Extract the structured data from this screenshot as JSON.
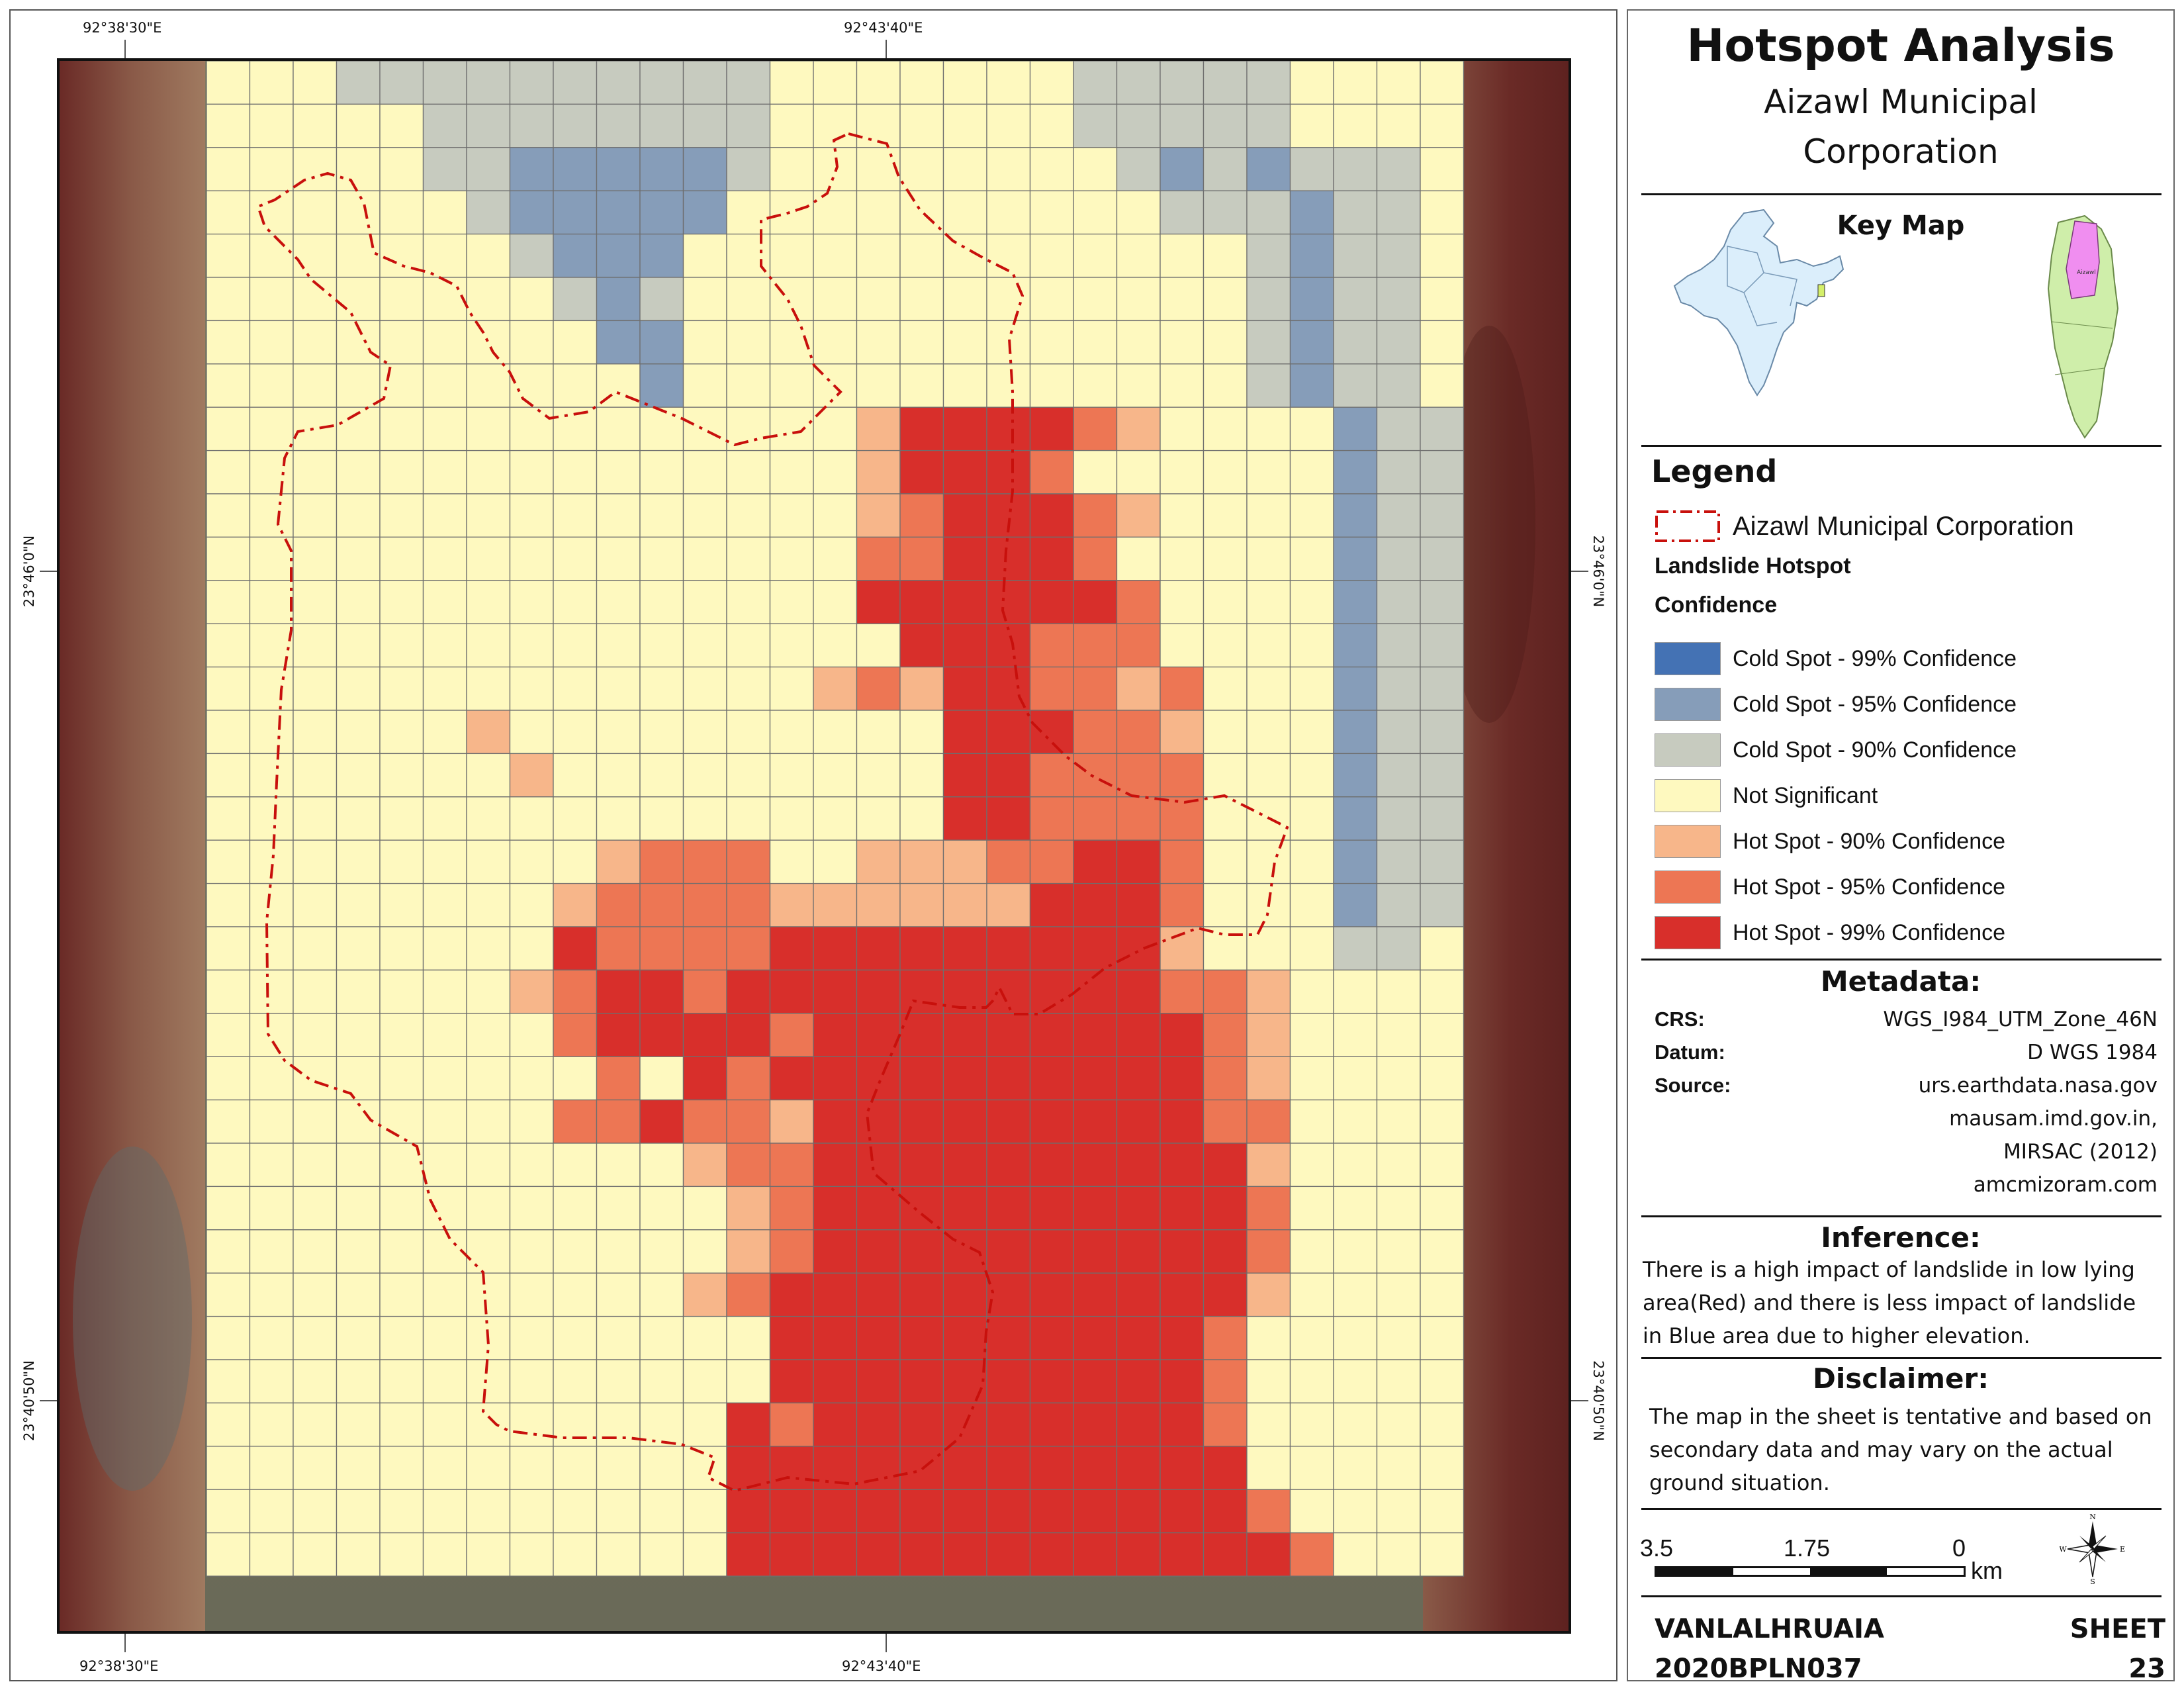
{
  "title": "Hotspot Analysis",
  "subtitle_line1": "Aizawl Municipal",
  "subtitle_line2": "Corporation",
  "keymap_title": "Key Map",
  "keymap_inset_label": "Aizawl",
  "legend": {
    "title": "Legend",
    "boundary_label": "Aizawl Municipal Corporation",
    "group_title_1": "Landslide Hotspot",
    "group_title_2": "Confidence",
    "items": [
      {
        "label": "Cold Spot - 99% Confidence",
        "color": "#4472b4"
      },
      {
        "label": "Cold Spot - 95% Confidence",
        "color": "#869db9"
      },
      {
        "label": "Cold Spot - 90% Confidence",
        "color": "#c7cbbf"
      },
      {
        "label": "Not Significant",
        "color": "#fef9bf"
      },
      {
        "label": "Hot Spot - 90% Confidence",
        "color": "#f7b68a"
      },
      {
        "label": "Hot Spot - 95% Confidence",
        "color": "#ed7654"
      },
      {
        "label": "Hot Spot - 99% Confidence",
        "color": "#d82f2b"
      }
    ]
  },
  "metadata": {
    "title": "Metadata:",
    "crs_key": "CRS:",
    "crs_val": "WGS_I984_UTM_Zone_46N",
    "datum_key": "Datum:",
    "datum_val": "D WGS 1984",
    "source_key": "Source:",
    "source_vals": [
      "urs.earthdata.nasa.gov",
      "mausam.imd.gov.in,",
      "MIRSAC (2012)",
      "amcmizoram.com"
    ]
  },
  "inference": {
    "title": "Inference:",
    "lines": [
      "There is a high impact of landslide in low lying",
      "area(Red) and there is less impact of landslide",
      "in Blue area due to higher elevation."
    ]
  },
  "disclaimer": {
    "title": "Disclaimer:",
    "lines": [
      "The map in the sheet is tentative and based on",
      "secondary data and may vary on the actual",
      "ground situation."
    ]
  },
  "scale": {
    "left": "3.5",
    "mid": "1.75",
    "right": "0",
    "unit": "km"
  },
  "north_arrow": {
    "n": "N",
    "s": "S",
    "e": "E",
    "w": "W"
  },
  "footer": {
    "author": "VANLALHRUAIA",
    "id": "2020BPLN037",
    "sheet_label": "SHEET",
    "sheet_no": "23"
  },
  "coords": {
    "top_left": "92°38'30\"E",
    "top_mid": "92°43'40\"E",
    "bottom_left": "92°38'30\"E",
    "bottom_mid": "92°43'40\"E",
    "left_upper": "23°46'0\"N",
    "left_lower": "23°40'50\"N",
    "right_upper": "23°46'0\"N",
    "right_lower": "23°40'50\"N"
  },
  "grid": {
    "cols": 29,
    "rows": 35,
    "class_colors": {
      "0": "#fef9bf",
      "1": "#c7cbbf",
      "2": "#869db9",
      "3": "#4472b4",
      "4": "#f7b68a",
      "5": "#ed7654",
      "6": "#d82f2b"
    },
    "cells": [
      "00011111111110000000111110000",
      "00000111111110000000111110000",
      "00000112222210000000012121110",
      "00000012222200000000001112110",
      "00000001222000000000000012110",
      "00000000121000000000000012110",
      "00000000022000000000000012110",
      "00000000002000000000000012110",
      "00000000000000046666540000211",
      "00000000000000046665000000211",
      "00000000000000045666540000211",
      "00000000000000055666500000211",
      "00000000000000066666650000211",
      "00000000000000006665550000211",
      "00000000000000454665545000211",
      "00000040000000000666554000211",
      "00000004000000000665555000211",
      "00000000000000000665555000211",
      "00000000045550044455665000211",
      "00000000455554444446665000211",
      "00000000655556666666664000110",
      "00000004566566666666665540000",
      "00000000566665666666666540000",
      "00000000050656666666666540000",
      "00000000556554666666666550000",
      "00000000000455666666666640000",
      "00000000000045666666666650000",
      "00000000000045666666666650000",
      "00000000000456666666666640000",
      "00000000000006666666666500000",
      "00000000000006666666666500000",
      "00000000000065666666666500000",
      "00000000000066666666666600000",
      "00000000000066666666666650000",
      "00000000000066666666666665000"
    ]
  }
}
